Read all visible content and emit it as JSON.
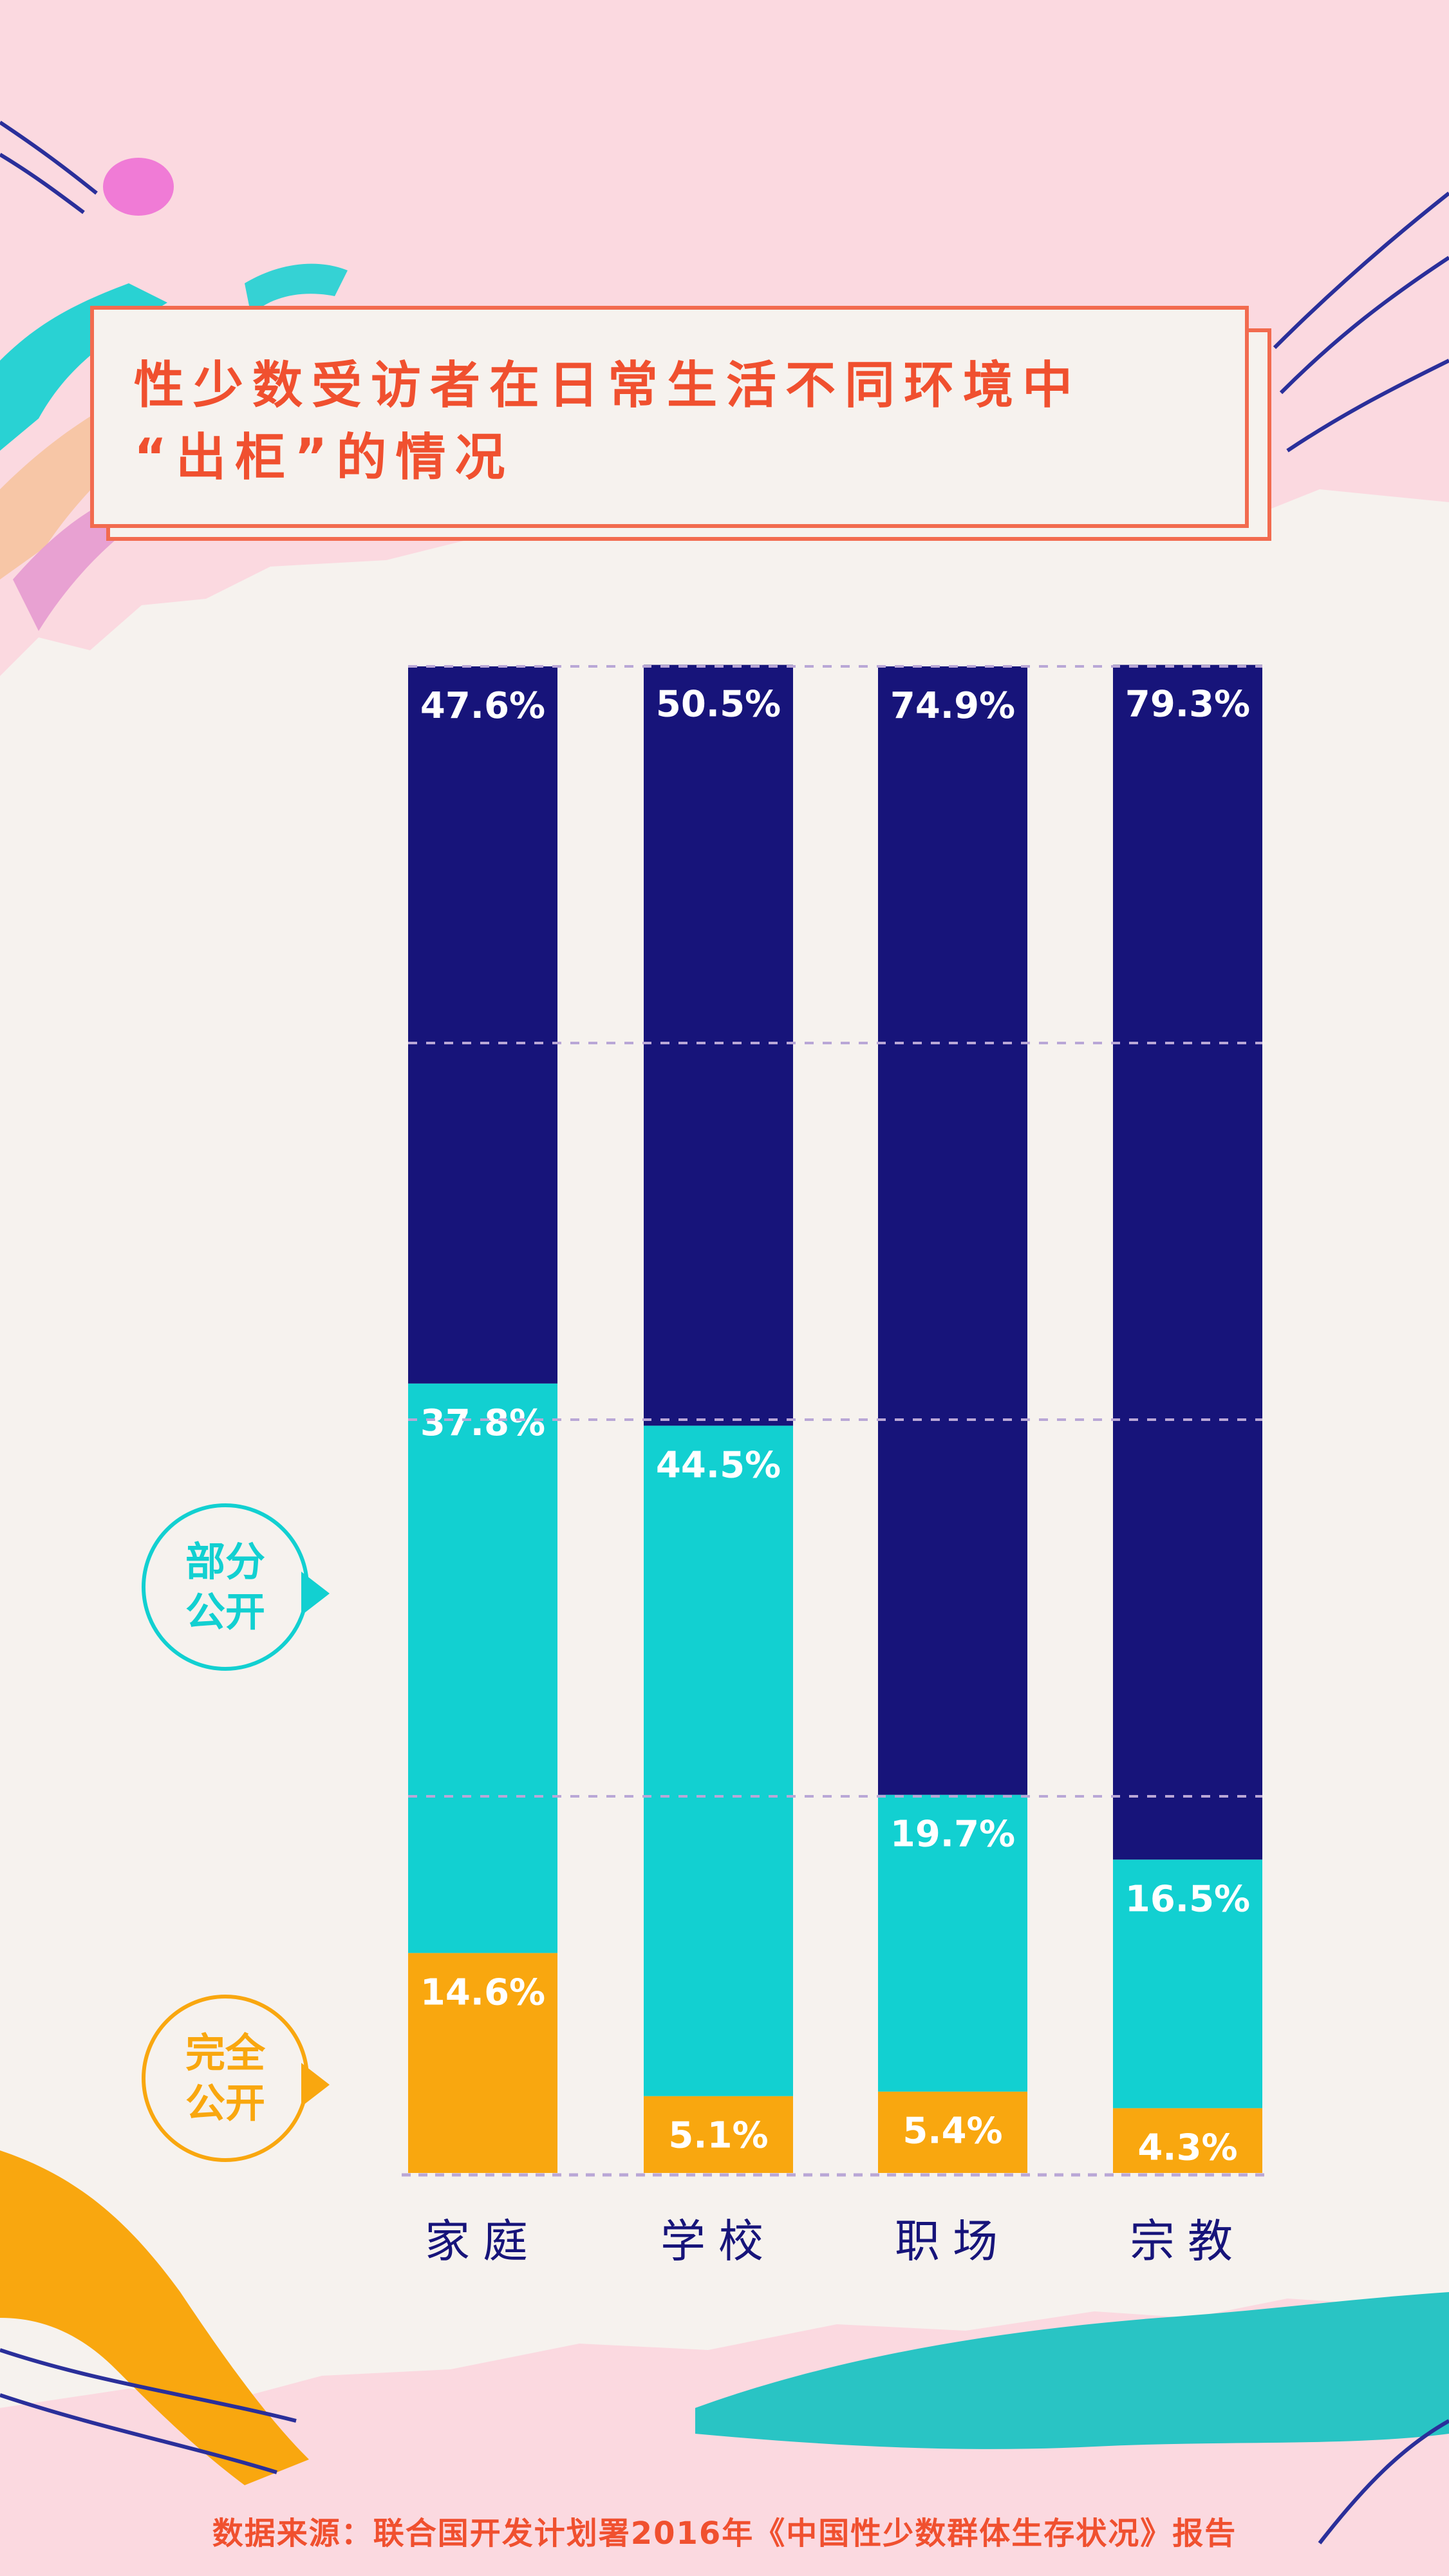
{
  "title": "性少数受访者在日常生活不同环境中“出柜”的情况",
  "title_lines": [
    "性少数受访者在日常生活不同环境中",
    "“出柜”的情况"
  ],
  "legend": {
    "partial": "部分公开",
    "partial_lines": [
      "部分",
      "公开"
    ],
    "full": "完全公开",
    "full_lines": [
      "完全",
      "公开"
    ]
  },
  "source": "数据来源：联合国开发计划署2016年《中国性少数群体生存状况》报告",
  "colors": {
    "not_public": "#17147a",
    "partial": "#12d0d1",
    "full": "#f9a70f",
    "title": "#f0502f",
    "background": "#f6f2ee",
    "pink": "#fbd9e0"
  },
  "chart_data": {
    "type": "bar",
    "stacked": true,
    "categories": [
      "家庭",
      "学校",
      "职场",
      "宗教"
    ],
    "series": [
      {
        "name": "完全公开",
        "values": [
          14.6,
          5.1,
          5.4,
          4.3
        ]
      },
      {
        "name": "部分公开",
        "values": [
          37.8,
          44.5,
          19.7,
          16.5
        ]
      },
      {
        "values": [
          47.6,
          50.5,
          74.9,
          79.3
        ]
      }
    ],
    "labels": [
      [
        "14.6%",
        "5.1%",
        "5.4%",
        "4.3%"
      ],
      [
        "37.8%",
        "44.5%",
        "19.7%",
        "16.5%"
      ],
      [
        "47.6%",
        "50.5%",
        "74.9%",
        "79.3%"
      ]
    ],
    "ylim": [
      0,
      100
    ],
    "grid": true
  }
}
